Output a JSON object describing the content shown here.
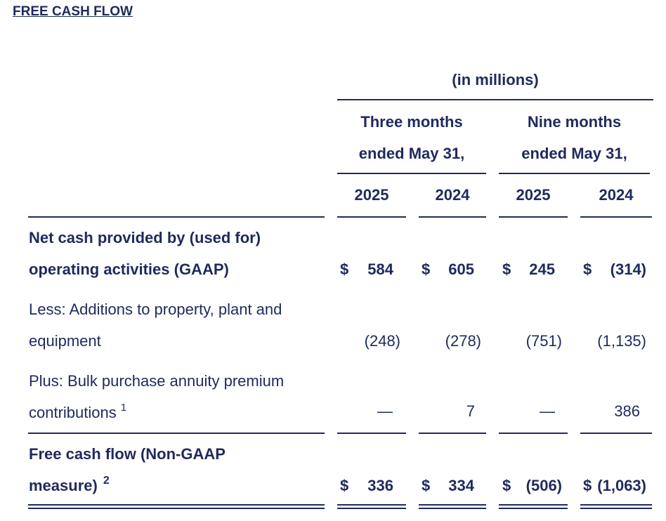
{
  "title": "FREE CASH FLOW",
  "units": "(in millions)",
  "period_groups": [
    {
      "line1": "Three months",
      "line2": "ended May 31,"
    },
    {
      "line1": "Nine months",
      "line2": "ended May 31,"
    }
  ],
  "years": [
    "2025",
    "2024",
    "2025",
    "2024"
  ],
  "rows": [
    {
      "label_line1": "Net cash provided by (used for)",
      "label_line2": "operating activities (GAAP)",
      "bold": true,
      "currency": "$",
      "values": [
        "584",
        "605",
        "245",
        "(314)"
      ]
    },
    {
      "label_line1": "Less: Additions to property, plant and",
      "label_line2": "equipment",
      "bold": false,
      "values": [
        "(248)",
        "(278)",
        "(751)",
        "(1,135)"
      ]
    },
    {
      "label_line1": "Plus: Bulk purchase annuity premium",
      "label_line2": "contributions",
      "footnote": "1",
      "bold": false,
      "values": [
        "—",
        "7",
        "—",
        "386"
      ]
    },
    {
      "label_line1": "Free cash flow (Non-GAAP",
      "label_line2": "measure)",
      "footnote": "2",
      "bold": true,
      "currency": "$",
      "values": [
        "336",
        "334",
        "(506)",
        "(1,063)"
      ]
    }
  ]
}
